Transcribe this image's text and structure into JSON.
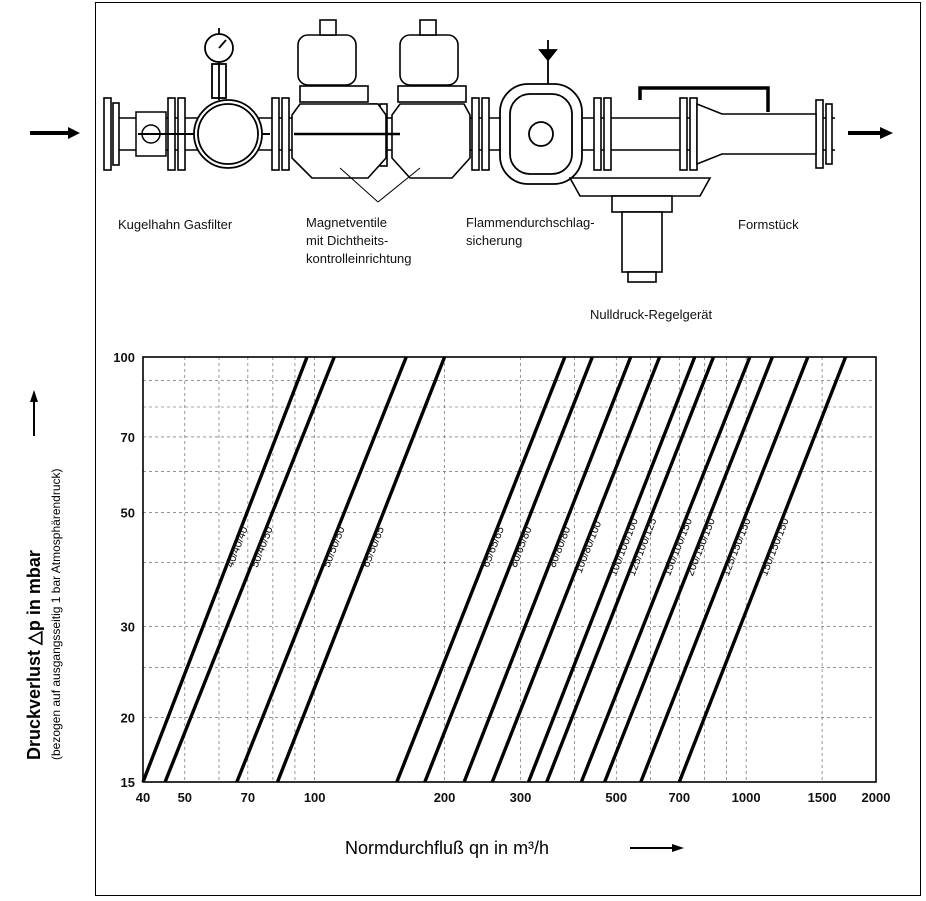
{
  "labels": {
    "kugelhahn_gasfilter": "Kugelhahn Gasfilter",
    "magnetventile": "Magnetventile\nmit Dichtheits-\nkontrolleinrichtung",
    "flammendurchschlag": "Flammendurchschlag-\nsicherung",
    "formstueck": "Formstück",
    "nulldruck": "Nulldruck-Regelgerät"
  },
  "chart_data": {
    "type": "line",
    "x_scale": "log",
    "y_scale": "log",
    "xlim": [
      40,
      2000
    ],
    "ylim": [
      15,
      100
    ],
    "grid": true,
    "x_ticks": [
      40,
      50,
      70,
      100,
      200,
      300,
      500,
      700,
      1000,
      1500,
      2000
    ],
    "y_ticks": [
      15,
      20,
      30,
      50,
      70,
      100
    ],
    "xlabel": "Normdurchfluß  qn  in  m³/h",
    "ylabel": "Druckverlust  △p  in  mbar",
    "ylabel_sub": "(bezogen auf ausgangsseitig 1 bar Atmosphärendruck)",
    "series": [
      {
        "name": "40/40/40",
        "points": [
          [
            40,
            15
          ],
          [
            96,
            100
          ]
        ]
      },
      {
        "name": "50/40/50",
        "points": [
          [
            45,
            15
          ],
          [
            111,
            100
          ]
        ]
      },
      {
        "name": "50/50/50",
        "points": [
          [
            66,
            15
          ],
          [
            163,
            100
          ]
        ]
      },
      {
        "name": "65/50/65",
        "points": [
          [
            82,
            15
          ],
          [
            200,
            100
          ]
        ]
      },
      {
        "name": "65/65/65",
        "points": [
          [
            155,
            15
          ],
          [
            380,
            100
          ]
        ]
      },
      {
        "name": "80/65/80",
        "points": [
          [
            180,
            15
          ],
          [
            440,
            100
          ]
        ]
      },
      {
        "name": "80/80/80",
        "points": [
          [
            222,
            15
          ],
          [
            540,
            100
          ]
        ]
      },
      {
        "name": "100/80/100",
        "points": [
          [
            258,
            15
          ],
          [
            630,
            100
          ]
        ]
      },
      {
        "name": "100/100/100",
        "points": [
          [
            313,
            15
          ],
          [
            760,
            100
          ]
        ]
      },
      {
        "name": "125/100/125",
        "points": [
          [
            345,
            15
          ],
          [
            840,
            100
          ]
        ]
      },
      {
        "name": "150/100/150",
        "points": [
          [
            415,
            15
          ],
          [
            1020,
            100
          ]
        ]
      },
      {
        "name": "125/150/150",
        "points": [
          [
            570,
            15
          ],
          [
            1390,
            100
          ]
        ]
      },
      {
        "name": "150/150/150",
        "points": [
          [
            700,
            15
          ],
          [
            1700,
            100
          ]
        ]
      },
      {
        "name": "200/150/150",
        "points": [
          [
            470,
            15
          ],
          [
            1150,
            100
          ]
        ]
      }
    ]
  }
}
